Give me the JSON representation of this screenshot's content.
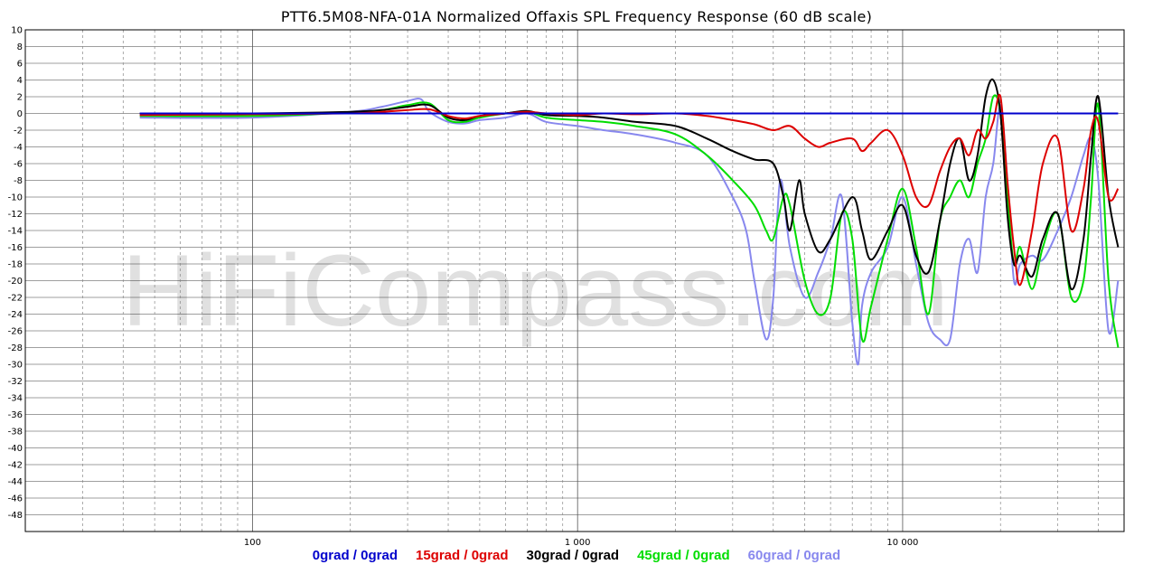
{
  "watermark": "HiFiCompass.com",
  "chart_data": {
    "type": "line",
    "title": "PTT6.5M08-NFA-01A Normalized Offaxis SPL Frequency Response (60 dB scale)",
    "xlabel": "",
    "ylabel": "",
    "x_scale": "log",
    "xlim": [
      20,
      48000
    ],
    "ylim": [
      -50,
      10
    ],
    "grid": true,
    "legend_position": "bottom-center",
    "y_ticks": [
      "10",
      "8",
      "6",
      "4",
      "2",
      "0",
      "-2",
      "-4",
      "-6",
      "-8",
      "-10",
      "-12",
      "-14",
      "-16",
      "-18",
      "-20",
      "-22",
      "-24",
      "-26",
      "-28",
      "-30",
      "-32",
      "-34",
      "-36",
      "-38",
      "-40",
      "-42",
      "-44",
      "-46",
      "-48"
    ],
    "x_tick_labels": [
      {
        "value": 100,
        "label": "100"
      },
      {
        "value": 1000,
        "label": "1 000"
      },
      {
        "value": 10000,
        "label": "10 000"
      }
    ],
    "series": [
      {
        "name": "0grad / 0grad",
        "color": "#0000cc",
        "x": [
          45,
          100,
          200,
          300,
          500,
          1000,
          2000,
          5000,
          10000,
          20000,
          46000
        ],
        "y": [
          0,
          0,
          0,
          0,
          0,
          0,
          0,
          0,
          0,
          0,
          0
        ]
      },
      {
        "name": "15grad / 0grad",
        "color": "#dd0000",
        "x": [
          45,
          100,
          200,
          250,
          300,
          350,
          400,
          450,
          500,
          600,
          700,
          800,
          1000,
          1200,
          1500,
          2000,
          2500,
          3000,
          3500,
          4000,
          4500,
          5000,
          5500,
          6000,
          7000,
          7500,
          8000,
          9000,
          10000,
          11000,
          12000,
          13000,
          14000,
          15000,
          16000,
          17000,
          18000,
          19000,
          20000,
          21000,
          22000,
          23000,
          25000,
          27000,
          30000,
          33000,
          36000,
          38000,
          40000,
          43000,
          46000
        ],
        "y": [
          -0.2,
          -0.1,
          0,
          0.2,
          0.4,
          0.5,
          -0.3,
          -0.6,
          -0.3,
          0,
          0.2,
          0,
          -0.2,
          0,
          -0.1,
          0,
          -0.3,
          -0.8,
          -1.3,
          -2.0,
          -1.5,
          -3.0,
          -4.0,
          -3.5,
          -3.0,
          -4.5,
          -3.5,
          -2.0,
          -5.0,
          -10.0,
          -11.0,
          -7.0,
          -4.0,
          -3.0,
          -5.0,
          -2.0,
          -3.0,
          -1.0,
          2.0,
          -8.0,
          -16.0,
          -20.5,
          -14.0,
          -6.0,
          -3.0,
          -14.0,
          -9.0,
          -2.0,
          -1.0,
          -10.0,
          -9.0
        ]
      },
      {
        "name": "30grad / 0grad",
        "color": "#000000",
        "x": [
          45,
          100,
          200,
          250,
          300,
          350,
          400,
          450,
          500,
          600,
          700,
          800,
          1000,
          1200,
          1500,
          2000,
          2500,
          3000,
          3500,
          4000,
          4300,
          4500,
          4800,
          5000,
          5500,
          6000,
          7000,
          7500,
          8000,
          9000,
          10000,
          11000,
          12000,
          13000,
          14000,
          15000,
          16000,
          17000,
          18000,
          19000,
          20000,
          21000,
          22000,
          23000,
          25000,
          27000,
          30000,
          33000,
          36000,
          38000,
          40000,
          43000,
          46000
        ],
        "y": [
          0,
          0,
          0.2,
          0.4,
          0.8,
          1.0,
          -0.5,
          -0.8,
          -0.3,
          0,
          0.3,
          -0.2,
          -0.3,
          -0.5,
          -1.0,
          -1.5,
          -3.0,
          -4.5,
          -5.5,
          -6.0,
          -10.0,
          -14.0,
          -8.0,
          -12.0,
          -16.5,
          -15.0,
          -10.0,
          -14.0,
          -17.5,
          -14.0,
          -11.0,
          -17.0,
          -19.0,
          -13.0,
          -6.0,
          -3.0,
          -8.0,
          -5.0,
          2.0,
          4.0,
          0.0,
          -12.0,
          -18.0,
          -17.0,
          -19.5,
          -15.0,
          -12.0,
          -21.0,
          -15.0,
          -5.0,
          2.0,
          -10.0,
          -16.0
        ]
      },
      {
        "name": "45grad / 0grad",
        "color": "#00dd00",
        "x": [
          45,
          100,
          200,
          250,
          300,
          350,
          400,
          450,
          500,
          600,
          700,
          800,
          1000,
          1200,
          1500,
          2000,
          2500,
          3000,
          3500,
          3800,
          4000,
          4300,
          4500,
          5000,
          5500,
          6000,
          6500,
          7000,
          7500,
          8000,
          9000,
          10000,
          11000,
          12000,
          13000,
          14000,
          15000,
          16000,
          17000,
          18000,
          19000,
          20000,
          21000,
          22000,
          23000,
          25000,
          27000,
          30000,
          33000,
          36000,
          38000,
          40000,
          43000,
          46000
        ],
        "y": [
          -0.3,
          -0.3,
          0.1,
          0.4,
          1.0,
          1.2,
          -0.8,
          -1.0,
          -0.5,
          0,
          0.2,
          -0.5,
          -0.8,
          -1.0,
          -1.5,
          -2.5,
          -5.0,
          -8.0,
          -11.0,
          -14.0,
          -15.0,
          -10.0,
          -11.0,
          -20.0,
          -24.0,
          -22.0,
          -12.0,
          -15.0,
          -27.0,
          -23.0,
          -15.0,
          -9.0,
          -16.0,
          -24.0,
          -13.0,
          -10.0,
          -8.0,
          -10.0,
          -6.0,
          -3.0,
          2.0,
          0.0,
          -10.0,
          -18.0,
          -16.0,
          -21.0,
          -16.0,
          -12.0,
          -22.0,
          -20.0,
          -10.0,
          1.0,
          -20.0,
          -28.0
        ]
      },
      {
        "name": "60grad / 0grad",
        "color": "#8888ee",
        "x": [
          45,
          100,
          200,
          250,
          300,
          330,
          350,
          400,
          450,
          500,
          600,
          700,
          800,
          1000,
          1200,
          1500,
          2000,
          2500,
          3000,
          3300,
          3500,
          3800,
          4000,
          4200,
          4500,
          5000,
          5500,
          6000,
          6500,
          7000,
          7300,
          7500,
          8000,
          9000,
          10000,
          11000,
          12000,
          13000,
          14000,
          15000,
          16000,
          17000,
          18000,
          19000,
          20000,
          21000,
          22000,
          23000,
          25000,
          27000,
          30000,
          33000,
          36000,
          38000,
          40000,
          43000,
          46000
        ],
        "y": [
          -0.5,
          -0.5,
          0.2,
          0.8,
          1.5,
          1.7,
          0.2,
          -1.0,
          -1.2,
          -0.8,
          -0.5,
          0,
          -1.0,
          -1.5,
          -2.0,
          -2.5,
          -3.5,
          -5.0,
          -10.0,
          -14.0,
          -20.0,
          -27.0,
          -22.0,
          -8.0,
          -16.0,
          -22.0,
          -19.0,
          -15.0,
          -10.0,
          -25.0,
          -30.0,
          -23.0,
          -19.0,
          -16.0,
          -10.0,
          -18.0,
          -25.0,
          -27.0,
          -27.0,
          -18.0,
          -15.0,
          -19.0,
          -10.0,
          -6.0,
          1.0,
          -8.0,
          -20.0,
          -18.0,
          -17.0,
          -17.5,
          -14.0,
          -10.0,
          -5.0,
          -3.0,
          -8.0,
          -26.0,
          -20.0
        ]
      }
    ]
  }
}
